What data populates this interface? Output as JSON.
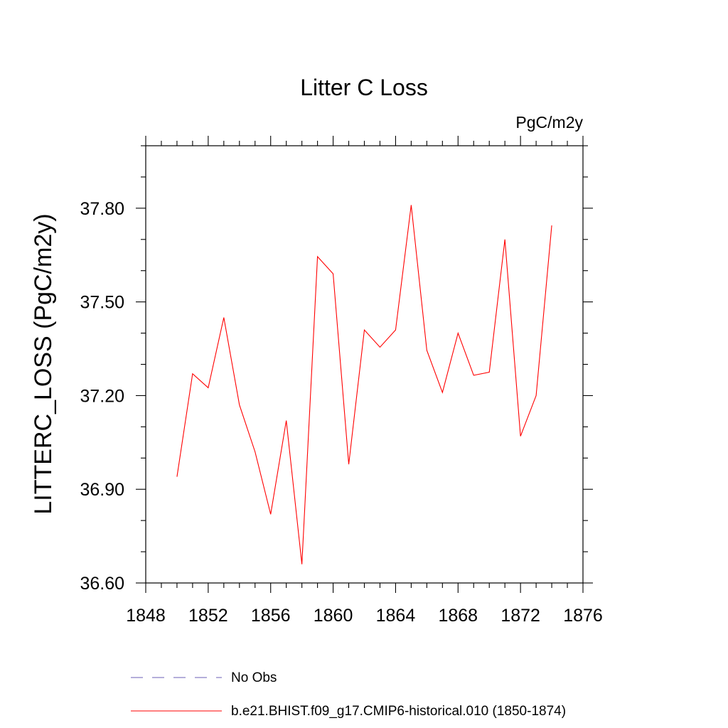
{
  "chart_data": {
    "type": "line",
    "title": "Litter C Loss",
    "units": "PgC/m2y",
    "xlabel": "",
    "ylabel": "LITTERC_LOSS  (PgC/m2y)",
    "xlim": [
      1848,
      1876
    ],
    "ylim": [
      36.6,
      38.0
    ],
    "x_ticks": [
      1848,
      1852,
      1856,
      1860,
      1864,
      1868,
      1872,
      1876
    ],
    "x_tick_labels": [
      "1848",
      "1852",
      "1856",
      "1860",
      "1864",
      "1868",
      "1872",
      "1876"
    ],
    "x_minor_step": 1,
    "y_ticks": [
      36.6,
      36.9,
      37.2,
      37.5,
      37.8
    ],
    "y_tick_labels": [
      "36.60",
      "36.90",
      "37.20",
      "37.50",
      "37.80"
    ],
    "y_minor_step": 0.1,
    "grid": false,
    "legend_position": "bottom",
    "series": [
      {
        "name": "b.e21.BHIST.f09_g17.CMIP6-historical.010 (1850-1874)",
        "color": "#ff0000",
        "dash": "solid",
        "x": [
          1850,
          1851,
          1852,
          1853,
          1854,
          1855,
          1856,
          1857,
          1858,
          1859,
          1860,
          1861,
          1862,
          1863,
          1864,
          1865,
          1866,
          1867,
          1868,
          1869,
          1870,
          1871,
          1872,
          1873,
          1874
        ],
        "values": [
          36.94,
          37.27,
          37.225,
          37.45,
          37.17,
          37.02,
          36.82,
          37.12,
          36.66,
          37.645,
          37.59,
          36.98,
          37.41,
          37.355,
          37.41,
          37.81,
          37.345,
          37.21,
          37.4,
          37.265,
          37.275,
          37.7,
          37.07,
          37.2,
          37.745
        ]
      }
    ],
    "legend": [
      {
        "label": "No Obs",
        "color": "#6b5fb5",
        "dash": "dashed"
      },
      {
        "label": "b.e21.BHIST.f09_g17.CMIP6-historical.010 (1850-1874)",
        "color": "#ff0000",
        "dash": "solid"
      }
    ]
  }
}
